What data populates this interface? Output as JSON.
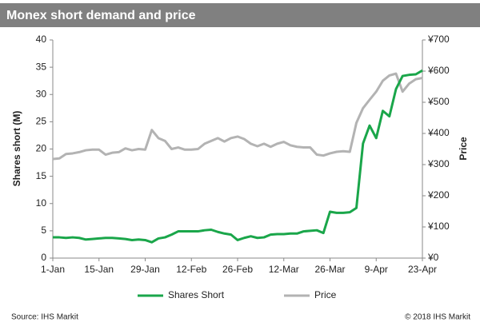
{
  "chart_data": {
    "type": "line",
    "title": "Monex short demand and price",
    "ylabel": "Shares short (M)",
    "y2label": "Price",
    "source": "Source: IHS Markit",
    "copyright": "© 2018 IHS Markit",
    "categories": [
      "1-Jan",
      null,
      null,
      null,
      null,
      null,
      null,
      "15-Jan",
      null,
      null,
      null,
      null,
      null,
      null,
      "29-Jan",
      null,
      null,
      null,
      null,
      null,
      null,
      "12-Feb",
      null,
      null,
      null,
      null,
      null,
      null,
      "26-Feb",
      null,
      null,
      null,
      null,
      null,
      null,
      "12-Mar",
      null,
      null,
      null,
      null,
      null,
      null,
      "26-Mar",
      null,
      null,
      null,
      null,
      null,
      null,
      "9-Apr",
      null,
      null,
      null,
      null,
      null,
      null,
      "23-Apr"
    ],
    "ylim": [
      0,
      40
    ],
    "yticks": [
      0,
      5,
      10,
      15,
      20,
      25,
      30,
      35,
      40
    ],
    "y2lim": [
      0,
      700
    ],
    "y2ticks": [
      {
        "value": 0,
        "label": "¥0"
      },
      {
        "value": 100,
        "label": "¥100"
      },
      {
        "value": 200,
        "label": "¥200"
      },
      {
        "value": 300,
        "label": "¥300"
      },
      {
        "value": 400,
        "label": "¥400"
      },
      {
        "value": 500,
        "label": "¥500"
      },
      {
        "value": 600,
        "label": "¥600"
      },
      {
        "value": 700,
        "label": "¥700"
      }
    ],
    "series": [
      {
        "name": "Shares Short",
        "color": "#1aa64a",
        "values": [
          3.8,
          3.8,
          3.7,
          3.8,
          3.7,
          3.4,
          3.5,
          3.6,
          3.7,
          3.7,
          3.6,
          3.5,
          3.3,
          3.4,
          3.3,
          2.9,
          3.6,
          3.8,
          4.3,
          4.9,
          4.9,
          4.9,
          4.9,
          5.1,
          5.2,
          4.8,
          4.5,
          4.3,
          3.3,
          3.7,
          4.0,
          3.7,
          3.8,
          4.3,
          4.4,
          4.4,
          4.5,
          4.5,
          4.9,
          5.0,
          5.1,
          4.6,
          8.5,
          8.3,
          8.3,
          8.4,
          9.2,
          21.0,
          24.3,
          22.0,
          27.0,
          26.0,
          31.0,
          33.4,
          33.6,
          33.7,
          34.4
        ]
      },
      {
        "name": "Price",
        "color": "#b3b3b3",
        "axis": "y2",
        "values": [
          318,
          320,
          334,
          336,
          340,
          346,
          348,
          348,
          332,
          338,
          340,
          352,
          346,
          350,
          348,
          411,
          385,
          376,
          350,
          355,
          348,
          348,
          350,
          367,
          376,
          385,
          374,
          385,
          390,
          382,
          367,
          359,
          367,
          357,
          367,
          373,
          362,
          357,
          355,
          355,
          332,
          329,
          336,
          341,
          343,
          341,
          434,
          481,
          508,
          534,
          569,
          586,
          592,
          534,
          560,
          574,
          578
        ]
      }
    ]
  }
}
